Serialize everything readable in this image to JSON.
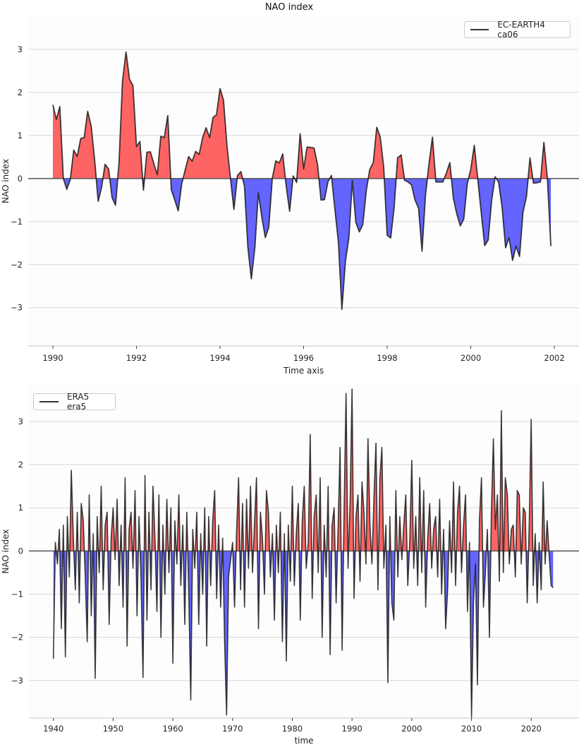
{
  "figure": {
    "title": "NAO index"
  },
  "colors": {
    "positive_fill": "#ff6464",
    "negative_fill": "#6464ff",
    "line": "#1c1c1c",
    "zero_line": "#555555",
    "grid": "#d6d6d6"
  },
  "chart_data": [
    {
      "type": "area",
      "title": "NAO index",
      "xlabel": "Time axis",
      "ylabel": "NAO index",
      "xlim": [
        1989.41,
        2002.59
      ],
      "ylim": [
        -3.89,
        3.77
      ],
      "xticks": [
        1990,
        1992,
        1994,
        1996,
        1998,
        2000,
        2002
      ],
      "yticks": [
        -3,
        -2,
        -1,
        0,
        1,
        2,
        3
      ],
      "ytick_labels": [
        "−3",
        "−2",
        "−1",
        "0",
        "1",
        "2",
        "3"
      ],
      "grid": "horizontal",
      "legend_position": "top-right",
      "series": [
        {
          "name": "EC-EARTH4 ca06",
          "x_start": "1990-01",
          "x_step_months": 1,
          "values": [
            1.71,
            1.37,
            1.67,
            0.0,
            -0.25,
            -0.02,
            0.66,
            0.51,
            0.93,
            0.95,
            1.56,
            1.22,
            0.43,
            -0.53,
            -0.2,
            0.33,
            0.22,
            -0.44,
            -0.62,
            0.37,
            2.26,
            2.94,
            2.31,
            2.16,
            0.74,
            0.86,
            -0.27,
            0.61,
            0.62,
            0.34,
            0.09,
            0.98,
            0.95,
            1.46,
            -0.26,
            -0.5,
            -0.75,
            -0.12,
            0.2,
            0.51,
            0.4,
            0.63,
            0.56,
            0.95,
            1.18,
            0.95,
            1.42,
            1.48,
            2.09,
            1.82,
            0.75,
            0.0,
            -0.72,
            0.07,
            0.16,
            -0.17,
            -1.6,
            -2.33,
            -1.6,
            -0.33,
            -0.89,
            -1.37,
            -1.13,
            0.0,
            0.41,
            0.36,
            0.57,
            -0.17,
            -0.76,
            0.06,
            -0.09,
            1.04,
            0.22,
            0.73,
            0.72,
            0.71,
            0.32,
            -0.5,
            -0.49,
            -0.07,
            0.07,
            -0.72,
            -1.49,
            -3.04,
            -1.92,
            -1.38,
            -0.05,
            -1.02,
            -1.24,
            -1.07,
            -0.28,
            0.21,
            0.37,
            1.19,
            0.97,
            0.26,
            -1.32,
            -1.38,
            -0.67,
            0.48,
            0.55,
            -0.04,
            -0.08,
            -0.15,
            -0.5,
            -0.69,
            -1.69,
            -0.39,
            0.34,
            0.96,
            -0.08,
            -0.08,
            -0.08,
            0.13,
            0.37,
            -0.45,
            -0.83,
            -1.1,
            -0.94,
            -0.12,
            0.21,
            0.77,
            0.0,
            -0.78,
            -1.56,
            -1.43,
            -0.5,
            0.04,
            -0.08,
            -0.67,
            -1.61,
            -1.37,
            -1.9,
            -1.57,
            -1.81,
            -0.78,
            -0.42,
            0.48,
            -0.11,
            -0.1,
            -0.08,
            0.84,
            0.0,
            -1.57
          ]
        }
      ]
    },
    {
      "type": "area",
      "title": "",
      "xlabel": "time",
      "ylabel": "NAO index",
      "xlim": [
        1935.9,
        2028.0
      ],
      "ylim": [
        -3.87,
        3.85
      ],
      "xticks": [
        1940,
        1950,
        1960,
        1970,
        1980,
        1990,
        2000,
        2010,
        2020
      ],
      "yticks": [
        -3,
        -2,
        -1,
        0,
        1,
        2,
        3
      ],
      "ytick_labels": [
        "−3",
        "−2",
        "−1",
        "0",
        "1",
        "2",
        "3"
      ],
      "grid": "horizontal",
      "legend_position": "top-left",
      "series": [
        {
          "name": "ERA5 era5",
          "x_start": "1940-01",
          "x_step_months": 4,
          "values": [
            -2.5,
            0.2,
            -0.3,
            0.5,
            -1.8,
            0.6,
            -2.45,
            0.8,
            -0.6,
            1.87,
            0.3,
            -0.9,
            0.9,
            -1.2,
            1.1,
            0.7,
            -0.6,
            -2.1,
            1.3,
            -1.5,
            0.4,
            -2.95,
            0.8,
            -0.5,
            1.5,
            -0.9,
            0.6,
            0.9,
            -1.7,
            0.3,
            1.0,
            -0.2,
            1.2,
            -0.8,
            0.6,
            -1.3,
            1.7,
            -2.2,
            0.5,
            0.9,
            -0.4,
            1.4,
            -1.5,
            0.8,
            -0.6,
            -2.93,
            1.75,
            -1.6,
            0.9,
            -0.9,
            1.5,
            0.3,
            -1.4,
            1.3,
            -2.0,
            0.6,
            -1.0,
            1.2,
            -0.5,
            1.0,
            -2.6,
            0.7,
            -0.3,
            1.3,
            -0.8,
            0.6,
            -1.7,
            0.9,
            -1.0,
            -3.45,
            0.5,
            -0.4,
            0.9,
            -1.7,
            0.4,
            -1.0,
            1.0,
            -2.2,
            0.8,
            -0.8,
            0.7,
            1.4,
            -1.1,
            0.6,
            -1.3,
            0.3,
            -2.1,
            -3.8,
            -0.6,
            -0.2,
            0.2,
            -1.3,
            0.4,
            1.7,
            -0.9,
            1.1,
            -1.3,
            1.2,
            -0.4,
            1.5,
            -0.5,
            0.6,
            1.7,
            -1.8,
            0.9,
            0.3,
            -1.0,
            1.4,
            0.9,
            -0.6,
            0.4,
            -1.6,
            0.6,
            -0.5,
            0.9,
            -2.1,
            0.4,
            -2.55,
            0.6,
            -0.7,
            1.5,
            -0.8,
            0.4,
            1.1,
            -1.6,
            0.7,
            1.5,
            -0.4,
            0.2,
            2.7,
            -1.1,
            0.8,
            1.3,
            -0.5,
            1.7,
            -2.0,
            0.6,
            -0.6,
            1.5,
            -2.4,
            0.6,
            1.0,
            -1.2,
            0.5,
            2.4,
            -2.3,
            0.9,
            3.65,
            -0.4,
            1.1,
            3.75,
            -1.1,
            0.8,
            1.3,
            -0.7,
            1.6,
            0.9,
            -0.3,
            2.6,
            0.6,
            -0.3,
            1.2,
            2.5,
            -0.9,
            1.7,
            2.4,
            -0.4,
            0.6,
            -3.05,
            0.8,
            -1.2,
            -1.6,
            1.4,
            -0.6,
            0.8,
            -0.2,
            0.6,
            1.3,
            -0.8,
            0.2,
            2.1,
            -0.4,
            0.8,
            -0.8,
            1.7,
            -0.5,
            1.4,
            -1.3,
            0.3,
            1.1,
            -0.4,
            0.5,
            0.8,
            -0.6,
            1.2,
            -1.0,
            0.5,
            -1.8,
            -0.9,
            0.7,
            -0.5,
            1.6,
            -0.8,
            0.9,
            1.5,
            -0.5,
            0.6,
            1.3,
            -1.4,
            0.2,
            -3.85,
            -1.2,
            -0.3,
            -3.1,
            0.7,
            1.7,
            -1.3,
            -0.5,
            0.5,
            -2.0,
            0.9,
            2.6,
            0.5,
            1.3,
            -0.7,
            3.25,
            -0.5,
            1.7,
            1.3,
            -0.3,
            0.5,
            0.6,
            -0.6,
            1.4,
            1.3,
            -0.3,
            1.0,
            0.9,
            -1.2,
            0.6,
            3.05,
            -0.8,
            0.4,
            -1.2,
            0.2,
            -0.9,
            1.6,
            -0.3,
            0.7,
            -0.1,
            -0.8,
            -0.85
          ]
        }
      ]
    }
  ]
}
